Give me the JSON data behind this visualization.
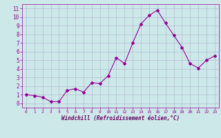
{
  "x": [
    0,
    1,
    2,
    3,
    4,
    5,
    6,
    7,
    8,
    9,
    10,
    11,
    12,
    13,
    14,
    15,
    16,
    17,
    18,
    19,
    20,
    21,
    22,
    23
  ],
  "y": [
    1.0,
    0.9,
    0.7,
    0.2,
    0.2,
    1.5,
    1.7,
    1.3,
    2.4,
    2.3,
    3.2,
    5.3,
    4.6,
    7.0,
    9.2,
    10.2,
    10.8,
    9.3,
    7.9,
    6.5,
    4.6,
    4.1,
    5.0,
    5.5
  ],
  "line_color": "#990099",
  "marker": "D",
  "marker_size": 2,
  "bg_color": "#cce8e8",
  "grid_color": "#aaaacc",
  "xlabel": "Windchill (Refroidissement éolien,°C)",
  "xlabel_color": "#660066",
  "tick_color": "#990099",
  "ylim": [
    -0.5,
    11.5
  ],
  "xlim": [
    -0.5,
    23.5
  ],
  "yticks": [
    0,
    1,
    2,
    3,
    4,
    5,
    6,
    7,
    8,
    9,
    10,
    11
  ],
  "xticks": [
    0,
    1,
    2,
    3,
    4,
    5,
    6,
    7,
    8,
    9,
    10,
    11,
    12,
    13,
    14,
    15,
    16,
    17,
    18,
    19,
    20,
    21,
    22,
    23
  ]
}
